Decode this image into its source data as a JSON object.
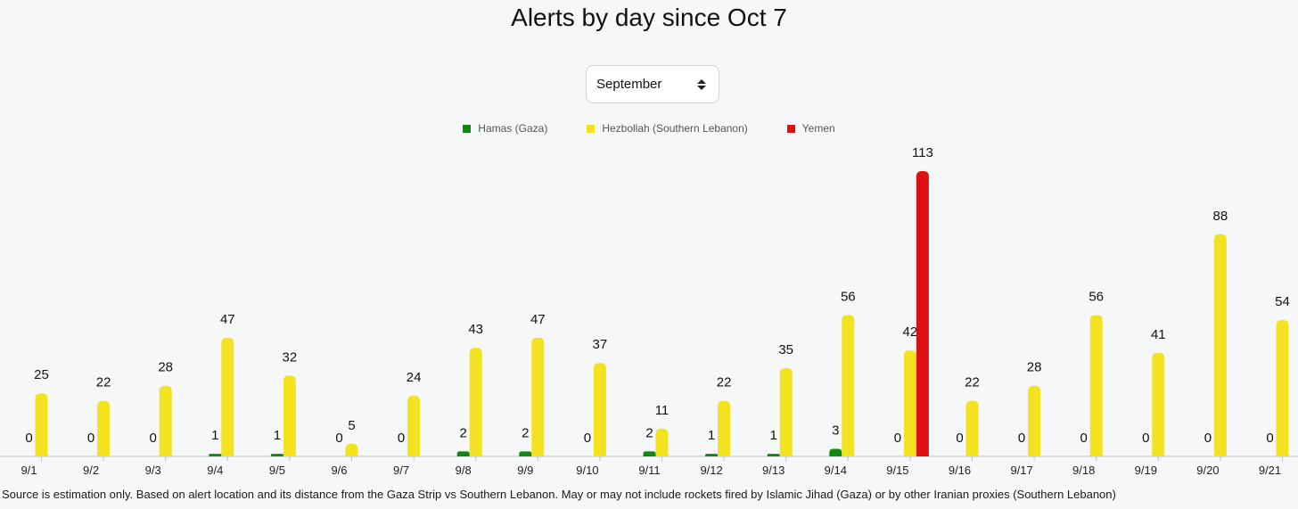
{
  "title": "Alerts by day since Oct 7",
  "month_select": {
    "value": "September"
  },
  "footnote": "Source is estimation only. Based on alert location and its distance from the Gaza Strip vs Southern Lebanon. May or may not include rockets fired by Islamic Jihad (Gaza) or by other Iranian proxies (Southern Lebanon)",
  "colors": {
    "hamas": "#118811",
    "hezbollah": "#f2e21f",
    "yemen": "#dd1111"
  },
  "chart_data": {
    "type": "bar",
    "categories": [
      "9/1",
      "9/2",
      "9/3",
      "9/4",
      "9/5",
      "9/6",
      "9/7",
      "9/8",
      "9/9",
      "9/10",
      "9/11",
      "9/12",
      "9/13",
      "9/14",
      "9/15",
      "9/16",
      "9/17",
      "9/18",
      "9/19",
      "9/20",
      "9/21"
    ],
    "series": [
      {
        "name": "Hamas (Gaza)",
        "values": [
          0,
          0,
          0,
          1,
          1,
          0,
          0,
          2,
          2,
          0,
          2,
          1,
          1,
          3,
          0,
          0,
          0,
          0,
          0,
          0,
          0
        ]
      },
      {
        "name": "Hezbollah (Southern Lebanon)",
        "values": [
          25,
          22,
          28,
          47,
          32,
          5,
          24,
          43,
          47,
          37,
          11,
          22,
          35,
          56,
          42,
          22,
          28,
          56,
          41,
          88,
          54
        ]
      },
      {
        "name": "Yemen",
        "values": [
          0,
          0,
          0,
          0,
          0,
          0,
          0,
          0,
          0,
          0,
          0,
          0,
          0,
          0,
          113,
          0,
          0,
          0,
          0,
          0,
          0
        ]
      }
    ],
    "ylim": [
      0,
      113
    ],
    "legend": "top-center",
    "grid": false
  }
}
